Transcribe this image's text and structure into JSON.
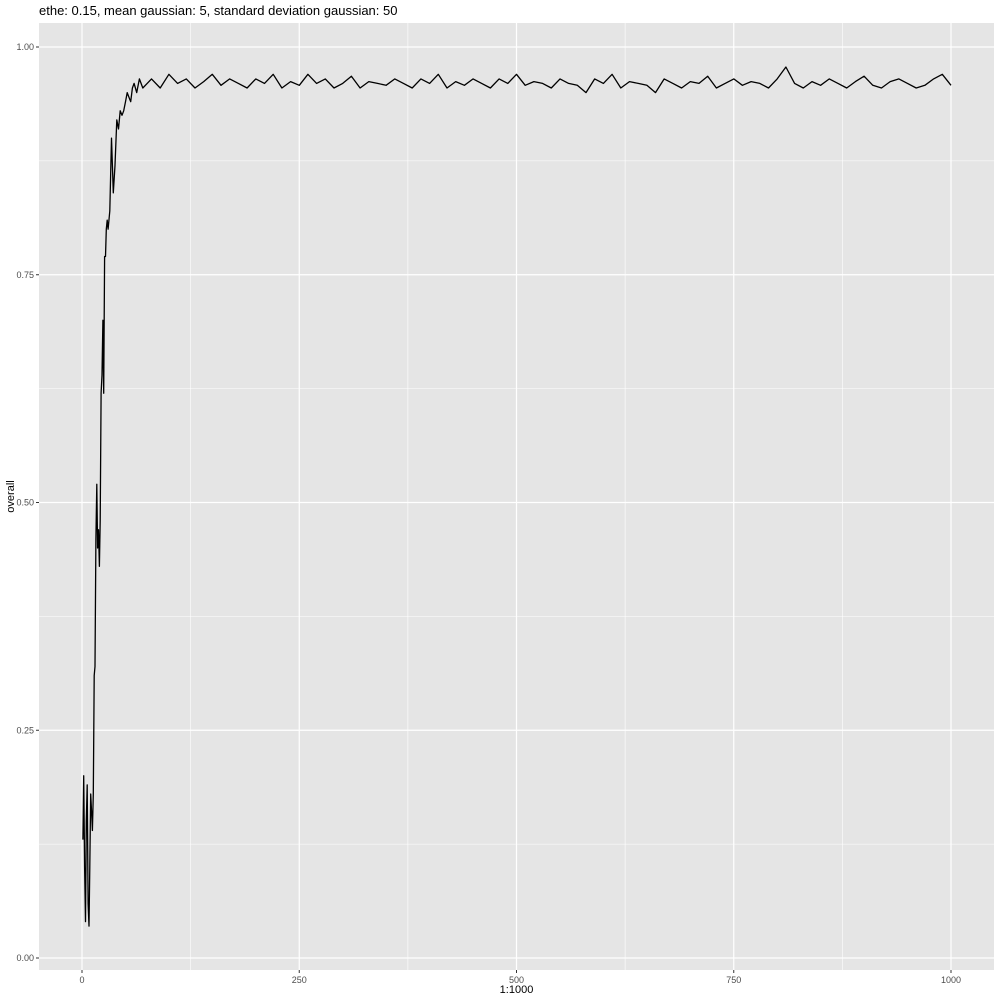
{
  "chart_data": {
    "type": "line",
    "title": "ethe: 0.15, mean gaussian: 5, standard deviation gaussian: 50",
    "xlabel": "1:1000",
    "ylabel": "overall",
    "xlim": [
      1,
      1000
    ],
    "ylim": [
      0.0,
      1.0
    ],
    "x_ticks": [
      0,
      250,
      500,
      750,
      1000
    ],
    "x_tick_labels": [
      "0",
      "250",
      "500",
      "750",
      "1000"
    ],
    "y_ticks": [
      0.0,
      0.25,
      0.5,
      0.75,
      1.0
    ],
    "y_tick_labels": [
      "0.00",
      "0.25",
      "0.50",
      "0.75",
      "1.00"
    ],
    "grid": true,
    "legend": "none",
    "colors": {
      "panel": "#e5e5e5",
      "grid": "#ffffff",
      "line": "#000000",
      "tick": "#4d4d4d"
    },
    "series": [
      {
        "x": [
          1,
          2,
          3,
          4,
          5,
          6,
          7,
          8,
          9,
          10,
          11,
          12,
          13,
          14,
          15,
          16,
          17,
          18,
          19,
          20,
          21,
          22,
          23,
          24,
          25,
          26,
          27,
          28,
          29,
          30,
          32,
          34,
          36,
          38,
          40,
          42,
          44,
          46,
          48,
          50,
          52,
          54,
          56,
          58,
          60,
          63,
          66,
          70,
          75,
          80,
          90,
          100,
          110,
          120,
          130,
          140,
          150,
          160,
          170,
          180,
          190,
          200,
          210,
          220,
          230,
          240,
          250,
          260,
          270,
          280,
          290,
          300,
          310,
          320,
          330,
          340,
          350,
          360,
          370,
          380,
          390,
          400,
          410,
          420,
          430,
          440,
          450,
          460,
          470,
          480,
          490,
          500,
          510,
          520,
          530,
          540,
          550,
          560,
          570,
          580,
          590,
          600,
          610,
          620,
          630,
          640,
          650,
          660,
          670,
          680,
          690,
          700,
          710,
          720,
          730,
          740,
          750,
          760,
          770,
          780,
          790,
          800,
          810,
          820,
          830,
          840,
          850,
          860,
          870,
          880,
          890,
          900,
          910,
          920,
          930,
          940,
          950,
          960,
          970,
          980,
          990,
          1000
        ],
        "y": [
          0.13,
          0.2,
          0.1,
          0.04,
          0.15,
          0.19,
          0.06,
          0.035,
          0.1,
          0.18,
          0.16,
          0.14,
          0.18,
          0.31,
          0.32,
          0.46,
          0.52,
          0.45,
          0.47,
          0.43,
          0.48,
          0.62,
          0.64,
          0.7,
          0.62,
          0.77,
          0.77,
          0.8,
          0.81,
          0.8,
          0.82,
          0.9,
          0.84,
          0.87,
          0.92,
          0.91,
          0.93,
          0.925,
          0.93,
          0.94,
          0.95,
          0.945,
          0.94,
          0.955,
          0.96,
          0.95,
          0.965,
          0.955,
          0.96,
          0.965,
          0.955,
          0.97,
          0.96,
          0.965,
          0.955,
          0.962,
          0.97,
          0.958,
          0.965,
          0.96,
          0.955,
          0.965,
          0.96,
          0.97,
          0.955,
          0.962,
          0.958,
          0.97,
          0.96,
          0.965,
          0.955,
          0.96,
          0.968,
          0.955,
          0.962,
          0.96,
          0.958,
          0.965,
          0.96,
          0.955,
          0.965,
          0.96,
          0.97,
          0.955,
          0.962,
          0.958,
          0.965,
          0.96,
          0.955,
          0.965,
          0.96,
          0.97,
          0.958,
          0.962,
          0.96,
          0.955,
          0.965,
          0.96,
          0.958,
          0.95,
          0.965,
          0.96,
          0.97,
          0.955,
          0.962,
          0.96,
          0.958,
          0.95,
          0.965,
          0.96,
          0.955,
          0.962,
          0.96,
          0.968,
          0.955,
          0.96,
          0.965,
          0.958,
          0.962,
          0.96,
          0.955,
          0.965,
          0.978,
          0.96,
          0.955,
          0.962,
          0.958,
          0.965,
          0.96,
          0.955,
          0.962,
          0.968,
          0.958,
          0.955,
          0.962,
          0.965,
          0.96,
          0.955,
          0.958,
          0.965,
          0.97,
          0.958
        ]
      }
    ]
  }
}
